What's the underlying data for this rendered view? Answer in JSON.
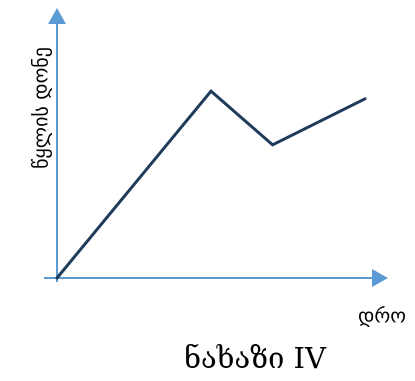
{
  "chart_data": {
    "type": "line",
    "title": "",
    "caption": "ნახაზი IV",
    "xlabel": "დრო",
    "ylabel": "წყლის დონე",
    "xlim": [
      0,
      10
    ],
    "ylim": [
      0,
      10
    ],
    "grid": false,
    "legend": "none",
    "series": [
      {
        "x": [
          0,
          5.0,
          7.0,
          10.0
        ],
        "y": [
          0,
          7.3,
          5.2,
          7.0
        ]
      }
    ]
  },
  "colors": {
    "axis": "#5b9bd5",
    "series": "#1f3b5a"
  }
}
